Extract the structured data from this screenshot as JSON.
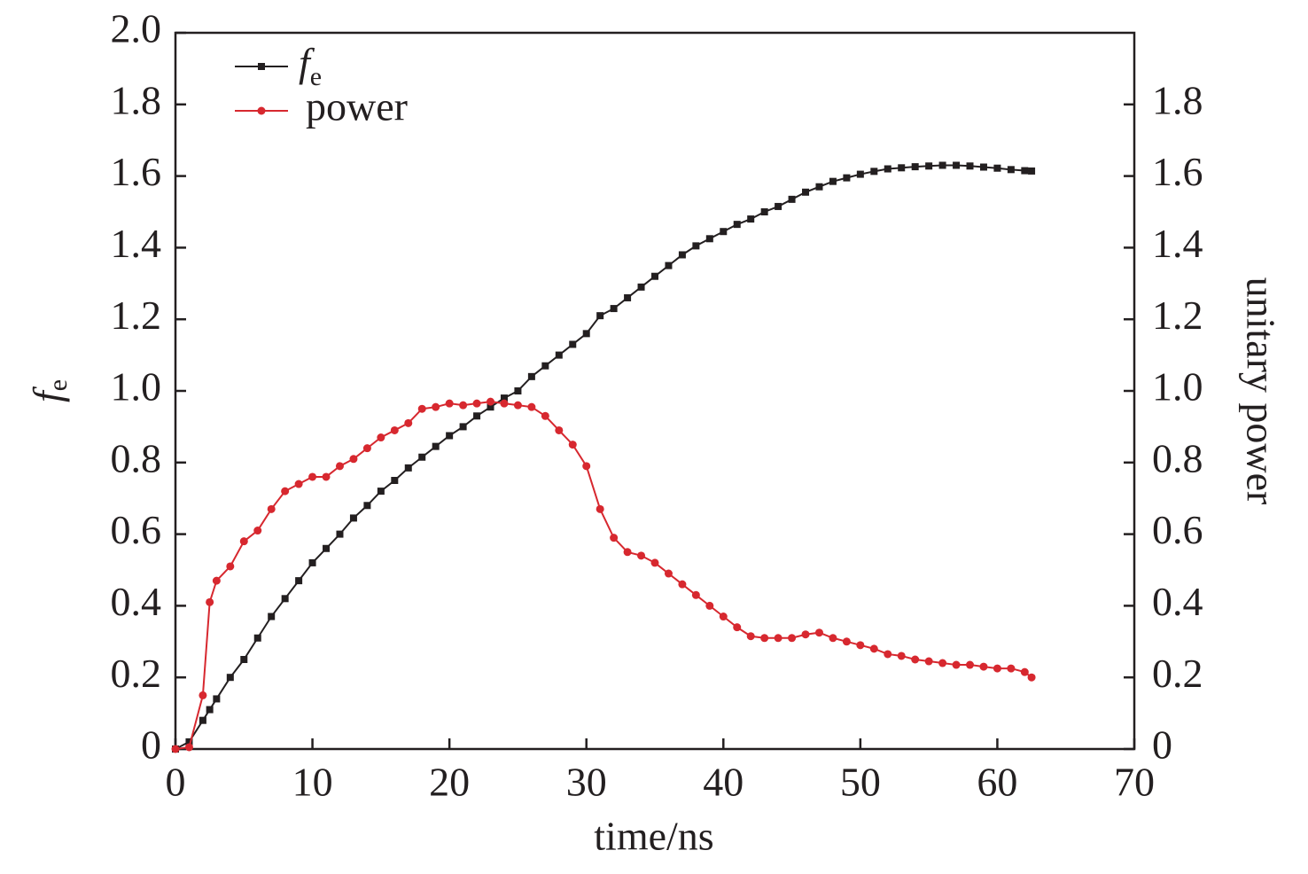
{
  "chart_data": {
    "type": "line",
    "xlabel": "time/ns",
    "ylabel": {
      "text": "f",
      "subscript": "e"
    },
    "y2label": "unitary power",
    "x": [
      0,
      1,
      2,
      2.5,
      3,
      4,
      5,
      6,
      7,
      8,
      9,
      10,
      11,
      12,
      13,
      14,
      15,
      16,
      17,
      18,
      19,
      20,
      21,
      22,
      23,
      24,
      25,
      26,
      27,
      28,
      29,
      30,
      31,
      32,
      33,
      34,
      35,
      36,
      37,
      38,
      39,
      40,
      41,
      42,
      43,
      44,
      45,
      46,
      47,
      48,
      49,
      50,
      51,
      52,
      53,
      54,
      55,
      56,
      57,
      58,
      59,
      60,
      61,
      62,
      62.5
    ],
    "series": [
      {
        "name": {
          "text": "f",
          "subscript": "e"
        },
        "color": "#231f20",
        "marker": "square",
        "values": [
          0,
          0.02,
          0.08,
          0.11,
          0.14,
          0.2,
          0.25,
          0.31,
          0.37,
          0.42,
          0.47,
          0.52,
          0.56,
          0.6,
          0.645,
          0.68,
          0.72,
          0.75,
          0.785,
          0.815,
          0.845,
          0.875,
          0.9,
          0.93,
          0.955,
          0.98,
          1.0,
          1.04,
          1.07,
          1.1,
          1.13,
          1.16,
          1.21,
          1.23,
          1.26,
          1.29,
          1.32,
          1.35,
          1.38,
          1.405,
          1.425,
          1.445,
          1.465,
          1.48,
          1.5,
          1.515,
          1.535,
          1.555,
          1.57,
          1.585,
          1.595,
          1.605,
          1.613,
          1.62,
          1.623,
          1.626,
          1.628,
          1.63,
          1.63,
          1.628,
          1.625,
          1.622,
          1.618,
          1.615,
          1.614
        ]
      },
      {
        "name": "power",
        "color": "#d7282f",
        "marker": "circle",
        "axis": "y2",
        "values": [
          0,
          0.005,
          0.15,
          0.41,
          0.47,
          0.51,
          0.58,
          0.61,
          0.67,
          0.72,
          0.74,
          0.76,
          0.76,
          0.79,
          0.81,
          0.84,
          0.87,
          0.89,
          0.91,
          0.95,
          0.955,
          0.965,
          0.96,
          0.965,
          0.97,
          0.965,
          0.96,
          0.955,
          0.93,
          0.89,
          0.85,
          0.79,
          0.67,
          0.59,
          0.55,
          0.54,
          0.52,
          0.49,
          0.46,
          0.43,
          0.4,
          0.37,
          0.34,
          0.315,
          0.31,
          0.31,
          0.31,
          0.32,
          0.325,
          0.31,
          0.3,
          0.29,
          0.28,
          0.265,
          0.26,
          0.25,
          0.245,
          0.24,
          0.235,
          0.235,
          0.23,
          0.225,
          0.225,
          0.215,
          0.2
        ]
      }
    ],
    "xlim": [
      0,
      70
    ],
    "xticks": [
      0,
      10,
      20,
      30,
      40,
      50,
      60,
      70
    ],
    "ylim": [
      0,
      2
    ],
    "yticks": [
      0,
      0.2,
      0.4,
      0.6,
      0.8,
      {
        "value": 1,
        "label": "1.0"
      },
      1.2,
      1.4,
      1.6,
      1.8,
      {
        "value": 2,
        "label": "2.0"
      }
    ],
    "y2lim": [
      0,
      2
    ],
    "y2ticks": [
      0,
      0.2,
      0.4,
      0.6,
      0.8,
      {
        "value": 1,
        "label": "1.0"
      },
      1.2,
      1.4,
      1.6,
      1.8
    ],
    "legend": "upper left"
  }
}
